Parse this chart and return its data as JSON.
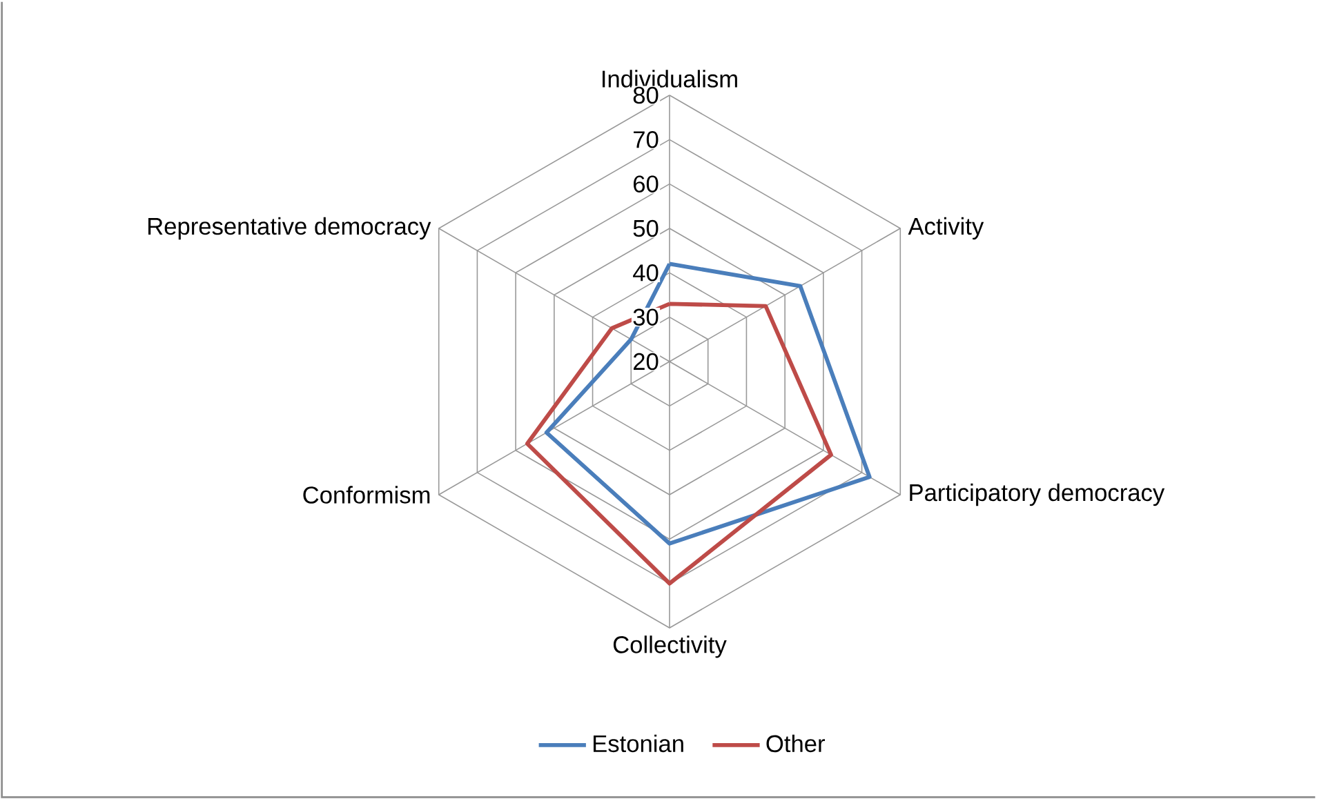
{
  "chart_data": {
    "type": "radar",
    "categories": [
      "Individualism",
      "Activity",
      "Participatory democracy",
      "Collectivity",
      "Conformism",
      "Representative democracy"
    ],
    "series": [
      {
        "name": "Estonian",
        "color": "#4a7ebb",
        "values": [
          42,
          54,
          72,
          61,
          52,
          30
        ]
      },
      {
        "name": "Other",
        "color": "#be4b48",
        "values": [
          33,
          45,
          62,
          70,
          57,
          35
        ]
      }
    ],
    "ylim": [
      20,
      80
    ],
    "yticks": [
      20,
      30,
      40,
      50,
      60,
      70,
      80
    ],
    "grid": true,
    "legend": "bottom"
  }
}
